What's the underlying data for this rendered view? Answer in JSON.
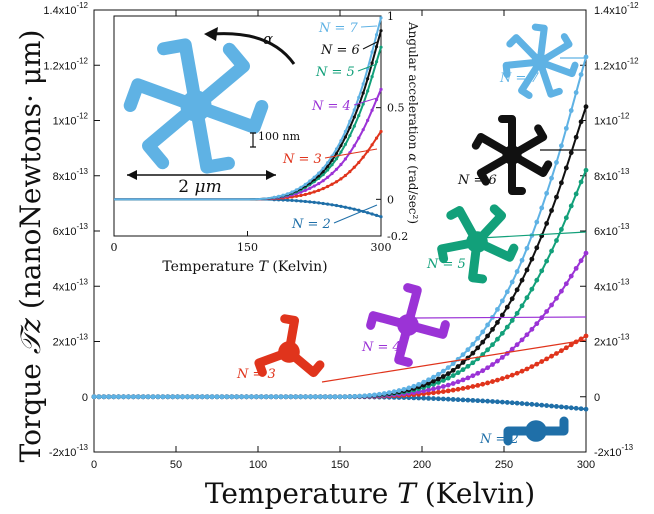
{
  "colors": {
    "n2": "#1f6fa8",
    "n3": "#e0341c",
    "n4": "#9b33d6",
    "n5": "#12a07a",
    "n6": "#111111",
    "n7": "#5fb2e4"
  },
  "chart_data": [
    {
      "type": "line",
      "xlabel_prefix": "Temperature ",
      "xlabel_var": "T",
      "xlabel_suffix": " (Kelvin)",
      "ylabel_prefix": "Torque ",
      "ylabel_var": "𝒯z",
      "ylabel_suffix": " (nanoNewtons· μm)",
      "xlim": [
        0,
        300
      ],
      "ylim": [
        -2e-13,
        1.4e-12
      ],
      "x_ticks": [
        "0",
        "50",
        "100",
        "150",
        "200",
        "250",
        "300"
      ],
      "y_tick_values": [
        -2e-13,
        0,
        2e-13,
        4e-13,
        6e-13,
        8e-13,
        1e-12,
        1.2e-12,
        1.4e-12
      ],
      "y_ticks_left": [
        {
          "m": "-2x10",
          "e": "-13"
        },
        {
          "m": "0",
          "e": ""
        },
        {
          "m": "2x10",
          "e": "-13"
        },
        {
          "m": "4x10",
          "e": "-13"
        },
        {
          "m": "6x10",
          "e": "-13"
        },
        {
          "m": "8x10",
          "e": "-13"
        },
        {
          "m": "1x10",
          "e": "-12"
        },
        {
          "m": "1.2x10",
          "e": "-12"
        },
        {
          "m": "1.4x10",
          "e": "-12"
        }
      ],
      "y_ticks_right": [
        {
          "m": "-2x10",
          "e": "-13"
        },
        {
          "m": "0",
          "e": ""
        },
        {
          "m": "2x10",
          "e": "-13"
        },
        {
          "m": "4x10",
          "e": "-13"
        },
        {
          "m": "6x10",
          "e": "-13"
        },
        {
          "m": "8x10",
          "e": "-13"
        },
        {
          "m": "1x10",
          "e": "-12"
        },
        {
          "m": "1.2x10",
          "e": "-12"
        },
        {
          "m": "1.4x10",
          "e": "-12"
        }
      ],
      "series": [
        {
          "name": "N = 2",
          "x": [
            0,
            150,
            180,
            200,
            220,
            240,
            260,
            280,
            300
          ],
          "values": [
            0,
            0,
            -2e-15,
            -5e-15,
            -1e-14,
            -1.6e-14,
            -2.4e-14,
            -3.4e-14,
            -4.5e-14
          ]
        },
        {
          "name": "N = 3",
          "x": [
            0,
            150,
            180,
            200,
            220,
            240,
            260,
            280,
            300
          ],
          "values": [
            0,
            0,
            3e-15,
            1e-14,
            2.5e-14,
            5e-14,
            9e-14,
            1.5e-13,
            2.2e-13
          ]
        },
        {
          "name": "N = 4",
          "x": [
            0,
            150,
            180,
            200,
            220,
            240,
            260,
            280,
            300
          ],
          "values": [
            0,
            0,
            6e-15,
            2e-14,
            5e-14,
            1.05e-13,
            2e-13,
            3.4e-13,
            5.2e-13
          ]
        },
        {
          "name": "N = 5",
          "x": [
            0,
            150,
            180,
            200,
            220,
            240,
            260,
            280,
            300
          ],
          "values": [
            0,
            0,
            1e-14,
            3.2e-14,
            8e-14,
            1.7e-13,
            3.2e-13,
            5.4e-13,
            8.2e-13
          ]
        },
        {
          "name": "N = 6",
          "x": [
            0,
            150,
            180,
            200,
            220,
            240,
            260,
            280,
            300
          ],
          "values": [
            0,
            0,
            1.2e-14,
            4e-14,
            1e-13,
            2.2e-13,
            4.1e-13,
            6.9e-13,
            1.05e-12
          ]
        },
        {
          "name": "N = 7",
          "x": [
            0,
            150,
            180,
            200,
            220,
            240,
            260,
            280,
            300
          ],
          "values": [
            0,
            0,
            1.5e-14,
            5e-14,
            1.25e-13,
            2.6e-13,
            4.8e-13,
            8.1e-13,
            1.23e-12
          ]
        }
      ]
    },
    {
      "type": "line",
      "xlabel_prefix": "Temperature ",
      "xlabel_var": "T",
      "xlabel_suffix": " (Kelvin)",
      "ylabel_prefix": "Angular acceleration ",
      "ylabel_var": "α",
      "ylabel_suffix": " (rad/sec²)",
      "xlim": [
        0,
        300
      ],
      "ylim": [
        -0.2,
        1
      ],
      "x_ticks": [
        "0",
        "150",
        "300"
      ],
      "y_ticks": [
        "-0.2",
        "0",
        "0.5",
        "1"
      ],
      "y_tick_values": [
        -0.2,
        0,
        0.5,
        1
      ],
      "scale_bar_label_prefix": "2 ",
      "scale_bar_label_unit": "μm",
      "arm_width_label": "100 nm",
      "rotation_label": "α",
      "series": [
        {
          "name": "N = 2",
          "x": [
            0,
            150,
            180,
            200,
            220,
            240,
            260,
            280,
            300
          ],
          "values": [
            0,
            0,
            -0.002,
            -0.006,
            -0.014,
            -0.026,
            -0.043,
            -0.066,
            -0.095
          ]
        },
        {
          "name": "N = 3",
          "x": [
            0,
            150,
            180,
            200,
            220,
            240,
            260,
            280,
            300
          ],
          "values": [
            0,
            0,
            0.004,
            0.013,
            0.033,
            0.07,
            0.13,
            0.23,
            0.37
          ]
        },
        {
          "name": "N = 4",
          "x": [
            0,
            150,
            180,
            200,
            220,
            240,
            260,
            280,
            300
          ],
          "values": [
            0,
            0,
            0.007,
            0.024,
            0.06,
            0.12,
            0.22,
            0.38,
            0.6
          ]
        },
        {
          "name": "N = 5",
          "x": [
            0,
            150,
            180,
            200,
            220,
            240,
            260,
            280,
            300
          ],
          "values": [
            0,
            0,
            0.009,
            0.032,
            0.08,
            0.16,
            0.3,
            0.52,
            0.83
          ]
        },
        {
          "name": "N = 6",
          "x": [
            0,
            150,
            180,
            200,
            220,
            240,
            260,
            280,
            300
          ],
          "values": [
            0,
            0,
            0.01,
            0.036,
            0.09,
            0.18,
            0.34,
            0.58,
            0.92
          ]
        },
        {
          "name": "N = 7",
          "x": [
            0,
            150,
            180,
            200,
            220,
            240,
            260,
            280,
            300
          ],
          "values": [
            0,
            0,
            0.011,
            0.04,
            0.1,
            0.2,
            0.37,
            0.63,
            0.99
          ]
        }
      ]
    }
  ]
}
